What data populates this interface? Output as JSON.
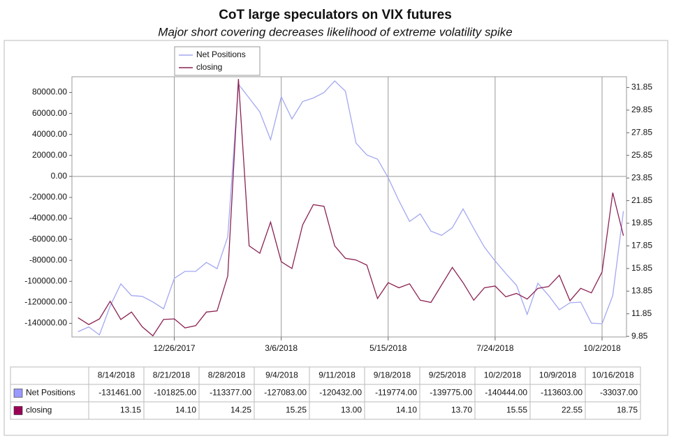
{
  "chart_data": {
    "type": "line",
    "title": "CoT large speculators on VIX futures",
    "subtitle": "Major short covering decreases likelihood of extreme volatility spike",
    "x": [
      "10/24/2017",
      "10/31/2017",
      "11/7/2017",
      "11/14/2017",
      "11/21/2017",
      "11/28/2017",
      "12/5/2017",
      "12/12/2017",
      "12/19/2017",
      "12/26/2017",
      "1/2/2018",
      "1/9/2018",
      "1/16/2018",
      "1/23/2018",
      "1/30/2018",
      "2/6/2018",
      "2/13/2018",
      "2/20/2018",
      "2/27/2018",
      "3/6/2018",
      "3/13/2018",
      "3/20/2018",
      "3/27/2018",
      "4/3/2018",
      "4/10/2018",
      "4/17/2018",
      "4/24/2018",
      "5/1/2018",
      "5/8/2018",
      "5/15/2018",
      "5/22/2018",
      "5/29/2018",
      "6/5/2018",
      "6/12/2018",
      "6/19/2018",
      "6/26/2018",
      "7/3/2018",
      "7/10/2018",
      "7/17/2018",
      "7/24/2018",
      "7/31/2018",
      "8/7/2018",
      "8/14/2018",
      "8/21/2018",
      "8/28/2018",
      "9/4/2018",
      "9/11/2018",
      "9/18/2018",
      "9/25/2018",
      "10/2/2018",
      "10/9/2018",
      "10/16/2018"
    ],
    "xlim": [
      "10/20/2017",
      "10/18/2018"
    ],
    "xticks": [
      "12/26/2017",
      "3/6/2018",
      "5/15/2018",
      "7/24/2018",
      "10/2/2018"
    ],
    "grid": "x",
    "ylim": [
      -153000,
      95000
    ],
    "yticks": [
      {
        "value": 80000,
        "label": "80000.00"
      },
      {
        "value": 60000,
        "label": "60000.00"
      },
      {
        "value": 40000,
        "label": "40000.00"
      },
      {
        "value": 20000,
        "label": "20000.00"
      },
      {
        "value": 0,
        "label": "0.00"
      },
      {
        "value": -20000,
        "label": "-20000.00"
      },
      {
        "value": -40000,
        "label": "-40000.00"
      },
      {
        "value": -60000,
        "label": "-60000.00"
      },
      {
        "value": -80000,
        "label": "-80000.00"
      },
      {
        "value": -100000,
        "label": "-100000.00"
      },
      {
        "value": -120000,
        "label": "-120000.00"
      },
      {
        "value": -140000,
        "label": "-140000.00"
      }
    ],
    "y2lim": [
      9.8,
      32.8
    ],
    "y2ticks": [
      31.85,
      29.85,
      27.85,
      25.85,
      23.85,
      21.85,
      19.85,
      17.85,
      15.85,
      13.85,
      11.85,
      9.85
    ],
    "legend": "top",
    "series": [
      {
        "name": "Net Positions",
        "color": "#a3a8f0",
        "values": [
          -148000,
          -143400,
          -151000,
          -123600,
          -102400,
          -113600,
          -114300,
          -119600,
          -126200,
          -97100,
          -90500,
          -90500,
          -82000,
          -87900,
          -57500,
          87900,
          74700,
          61400,
          35000,
          76000,
          54800,
          71400,
          74700,
          80000,
          91000,
          81300,
          31700,
          20500,
          16500,
          -1300,
          -23100,
          -42900,
          -35700,
          -52200,
          -56200,
          -48900,
          -31000,
          -49600,
          -67400,
          -80600,
          -92500,
          -103700,
          -131461,
          -101825,
          -113377,
          -127083,
          -120432,
          -119774,
          -139775,
          -140444,
          -113603,
          -33037
        ]
      },
      {
        "name": "closing",
        "color": "#8b2252",
        "axis": "y2",
        "values": [
          11.5,
          10.9,
          11.4,
          12.95,
          11.35,
          12.0,
          10.7,
          9.9,
          11.35,
          11.4,
          10.6,
          10.8,
          12.0,
          12.1,
          15.2,
          32.6,
          17.85,
          17.2,
          19.95,
          16.45,
          15.85,
          19.7,
          21.5,
          21.35,
          17.85,
          16.75,
          16.6,
          16.15,
          13.2,
          14.6,
          14.15,
          14.5,
          13.05,
          12.85,
          14.4,
          15.95,
          14.6,
          13.05,
          14.15,
          14.3,
          13.35,
          13.65,
          13.15,
          14.1,
          14.25,
          15.25,
          13.0,
          14.1,
          13.7,
          15.55,
          22.55,
          18.75
        ]
      }
    ],
    "table": {
      "rows": [
        [
          "-131461.00",
          "-101825.00",
          "-113377.00",
          "-127083.00",
          "-120432.00",
          "-119774.00",
          "-139775.00",
          "-140444.00",
          "-113603.00",
          "-33037.00"
        ],
        [
          "13.15",
          "14.10",
          "14.25",
          "15.25",
          "13.00",
          "14.10",
          "13.70",
          "15.55",
          "22.55",
          "18.75"
        ]
      ]
    }
  }
}
